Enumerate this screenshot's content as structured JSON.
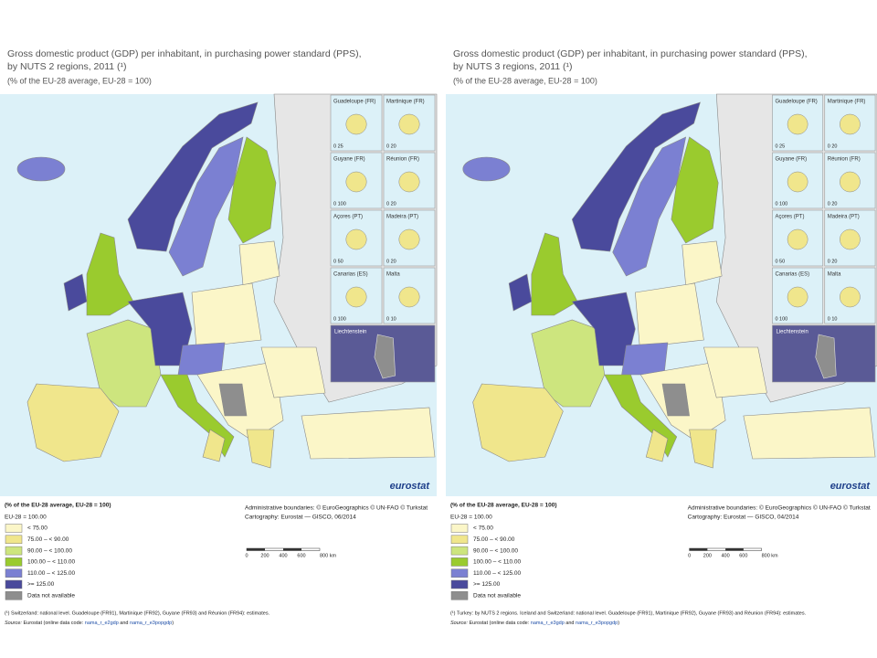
{
  "maps": [
    {
      "title": [
        "Gross domestic product (GDP) per inhabitant, in purchasing power standard (PPS),",
        "by NUTS 2 regions, 2011 (¹)"
      ],
      "subtitle": "(% of the EU-28 average, EU-28 = 100)",
      "legend": {
        "title": "(% of the EU-28 average, EU-28 = 100)",
        "base": "EU-28 = 100.00",
        "items": [
          {
            "label": "< 75.00",
            "color": "#fbf6c8"
          },
          {
            "label": "75.00 – < 90.00",
            "color": "#f0e68c"
          },
          {
            "label": "90.00 – < 100.00",
            "color": "#cde57e"
          },
          {
            "label": "100.00 – < 110.00",
            "color": "#9acb2e"
          },
          {
            "label": "110.00 – < 125.00",
            "color": "#7b80d2"
          },
          {
            "label": ">= 125.00",
            "color": "#4a4a9c"
          },
          {
            "label": "Data not available",
            "color": "#8e8e8e"
          }
        ]
      },
      "credits": [
        "Administrative boundaries: © EuroGeographics © UN-FAO © Turkstat",
        "Cartography: Eurostat — GISCO, 06/2014"
      ],
      "scale": [
        "0",
        "200",
        "400",
        "600",
        "800 km"
      ],
      "insets": [
        {
          "name": "Guadeloupe (FR)",
          "scale": "0   25"
        },
        {
          "name": "Martinique (FR)",
          "scale": "0   20"
        },
        {
          "name": "Guyane (FR)",
          "scale": "0   100"
        },
        {
          "name": "Réunion (FR)",
          "scale": "0   20"
        },
        {
          "name": "Açores (PT)",
          "scale": "0   50"
        },
        {
          "name": "Madeira (PT)",
          "scale": "0   20"
        },
        {
          "name": "Canarias (ES)",
          "scale": "0   100"
        },
        {
          "name": "Malta",
          "scale": "0   10"
        },
        {
          "name": "Liechtenstein",
          "scale": ""
        }
      ],
      "logo": "eurostat",
      "footnote": "(¹) Switzerland: national level. Guadeloupe (FR91), Martinique (FR92), Guyane (FR93) and Réunion (FR94): estimates.",
      "source": [
        "Source:",
        " Eurostat (online data code: ",
        "nama_r_e2gdp",
        " and ",
        "nama_r_e3popgdp",
        ")"
      ]
    },
    {
      "title": [
        "Gross domestic product (GDP) per inhabitant, in purchasing power standard (PPS),",
        "by NUTS 3 regions, 2011 (¹)"
      ],
      "subtitle": "(% of the EU-28 average, EU-28 = 100)",
      "legend": {
        "title": "(% of the EU-28 average, EU-28 = 100)",
        "base": "EU-28 = 100.00",
        "items": [
          {
            "label": "< 75.00",
            "color": "#fbf6c8"
          },
          {
            "label": "75.00 – < 90.00",
            "color": "#f0e68c"
          },
          {
            "label": "90.00 – < 100.00",
            "color": "#cde57e"
          },
          {
            "label": "100.00 – < 110.00",
            "color": "#9acb2e"
          },
          {
            "label": "110.00 – < 125.00",
            "color": "#7b80d2"
          },
          {
            "label": ">= 125.00",
            "color": "#4a4a9c"
          },
          {
            "label": "Data not available",
            "color": "#8e8e8e"
          }
        ]
      },
      "credits": [
        "Administrative boundaries: © EuroGeographics © UN-FAO © Turkstat",
        "Cartography: Eurostat — GISCO, 04/2014"
      ],
      "scale": [
        "0",
        "200",
        "400",
        "600",
        "800 km"
      ],
      "insets": [
        {
          "name": "Guadeloupe (FR)",
          "scale": "0   25"
        },
        {
          "name": "Martinique (FR)",
          "scale": "0   20"
        },
        {
          "name": "Guyane (FR)",
          "scale": "0   100"
        },
        {
          "name": "Réunion (FR)",
          "scale": "0   20"
        },
        {
          "name": "Açores (PT)",
          "scale": "0   50"
        },
        {
          "name": "Madeira (PT)",
          "scale": "0   20"
        },
        {
          "name": "Canarias (ES)",
          "scale": "0   100"
        },
        {
          "name": "Malta",
          "scale": "0   10"
        },
        {
          "name": "Liechtenstein",
          "scale": ""
        }
      ],
      "logo": "eurostat",
      "footnote": "(¹) Turkey: by NUTS 2 regions. Iceland and Switzerland: national level. Guadeloupe (FR91), Martinique (FR92), Guyane (FR93) and Réunion (FR94): estimates.",
      "source": [
        "Source:",
        " Eurostat (online data code: ",
        "nama_r_e3gdp",
        " and ",
        "nama_r_e3popgdp",
        ")"
      ]
    }
  ]
}
